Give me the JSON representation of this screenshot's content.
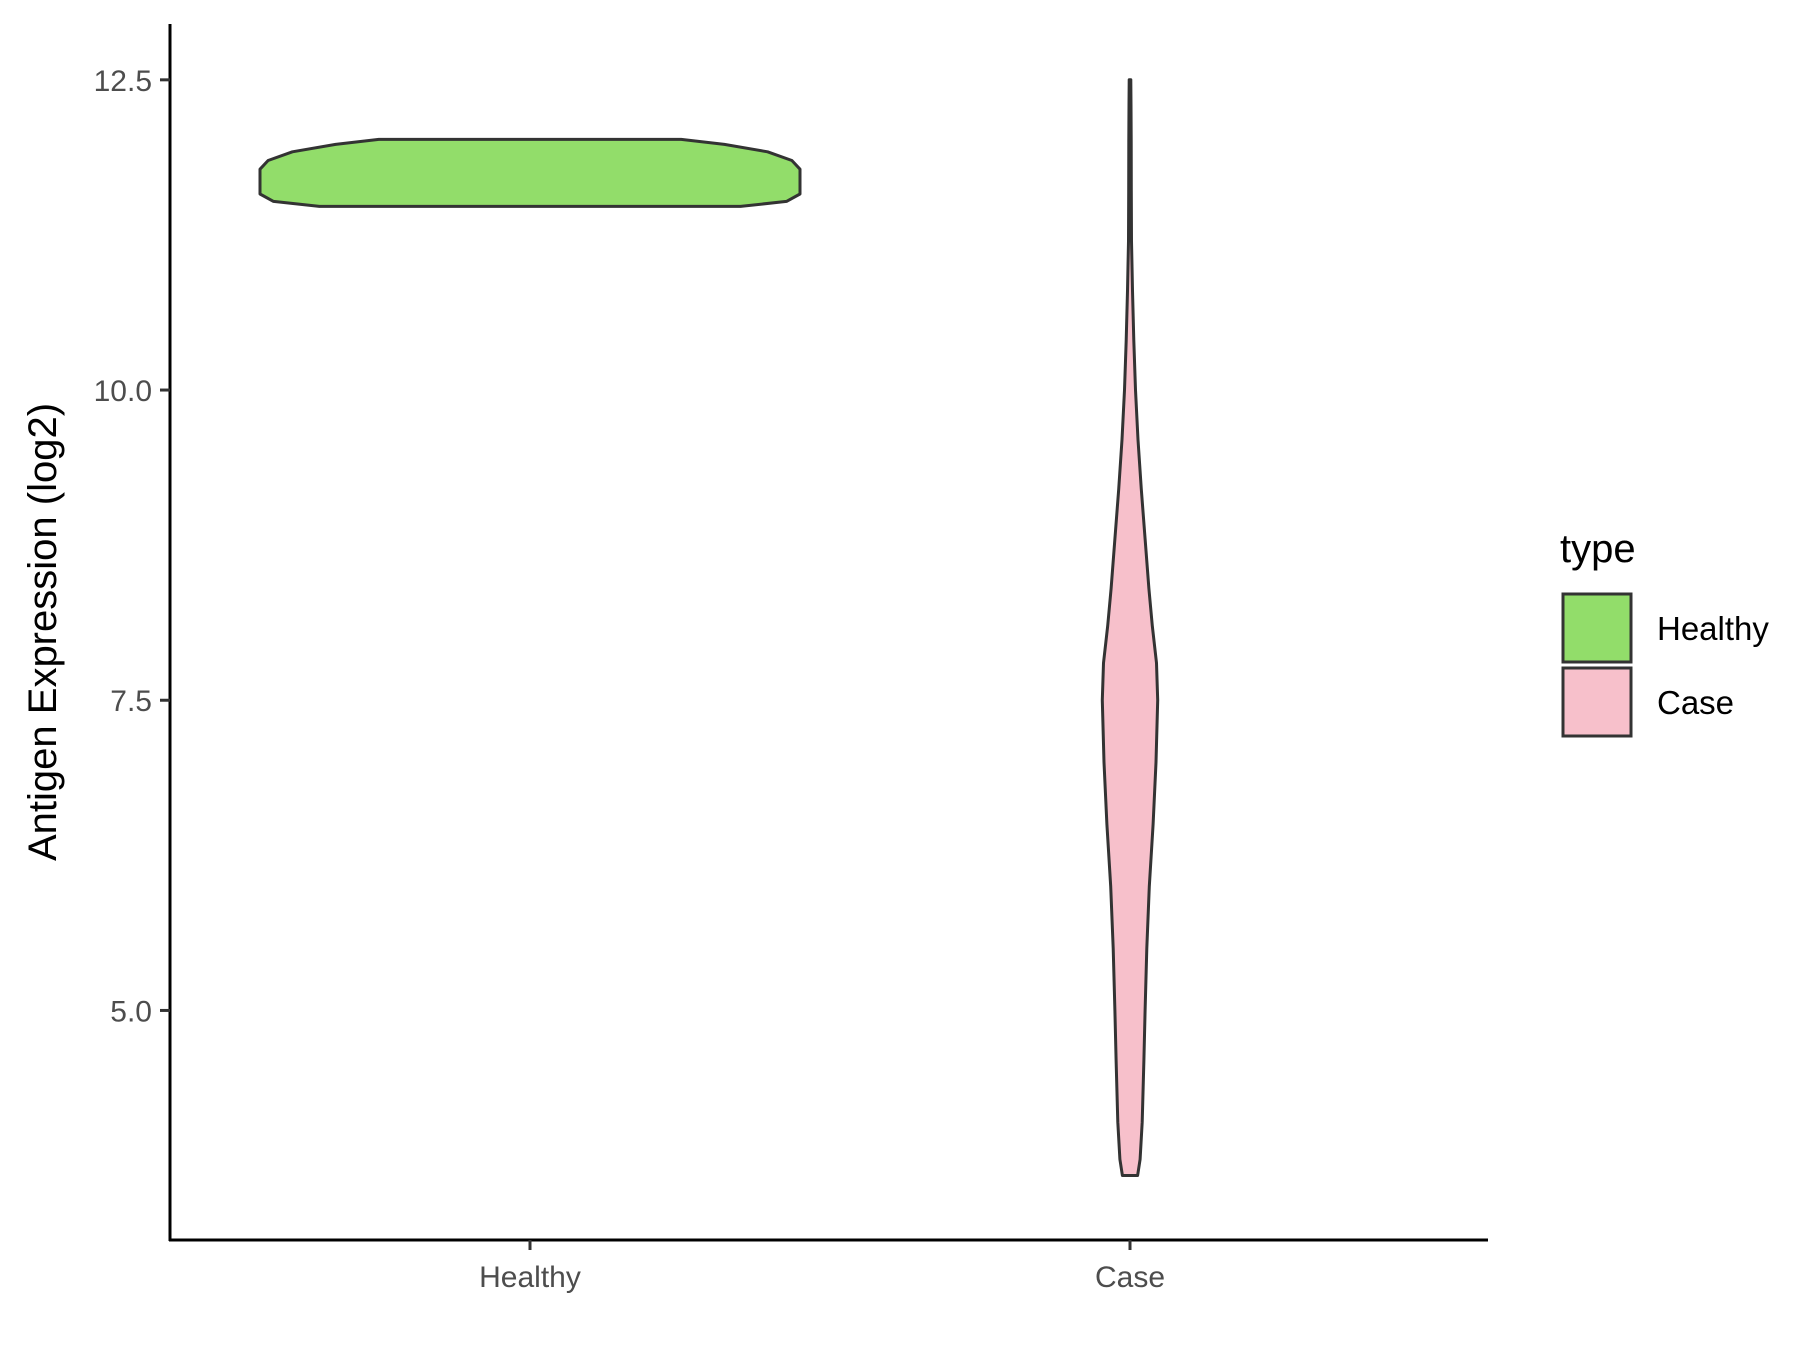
{
  "chart_data": {
    "type": "violin",
    "ylabel": "Antigen Expression (log2)",
    "xlabel": "",
    "categories": [
      "Healthy",
      "Case"
    ],
    "ylim": [
      3.15,
      12.95
    ],
    "yticks": [
      "5.0",
      "7.5",
      "10.0",
      "12.5"
    ],
    "ytick_values": [
      5.0,
      7.5,
      10.0,
      12.5
    ],
    "grid": false,
    "legend": {
      "title": "type",
      "position": "right",
      "entries": [
        {
          "label": "Healthy",
          "color": "#92DD6A"
        },
        {
          "label": "Case",
          "color": "#F7C0CB"
        }
      ]
    },
    "series": [
      {
        "name": "Healthy",
        "color": "#92DD6A",
        "range": [
          11.48,
          12.02
        ],
        "density_profile": [
          [
            11.48,
            0.78
          ],
          [
            11.52,
            0.95
          ],
          [
            11.58,
            1.0
          ],
          [
            11.65,
            1.0
          ],
          [
            11.72,
            1.0
          ],
          [
            11.78,
            1.0
          ],
          [
            11.85,
            0.97
          ],
          [
            11.92,
            0.88
          ],
          [
            11.98,
            0.72
          ],
          [
            12.02,
            0.56
          ]
        ]
      },
      {
        "name": "Case",
        "color": "#F7C0CB",
        "range": [
          3.67,
          12.5
        ],
        "density_profile": [
          [
            3.67,
            0.18
          ],
          [
            3.8,
            0.24
          ],
          [
            4.1,
            0.29
          ],
          [
            4.6,
            0.33
          ],
          [
            5.0,
            0.36
          ],
          [
            5.5,
            0.4
          ],
          [
            6.0,
            0.46
          ],
          [
            6.5,
            0.55
          ],
          [
            7.0,
            0.62
          ],
          [
            7.5,
            0.66
          ],
          [
            7.8,
            0.63
          ],
          [
            8.1,
            0.53
          ],
          [
            8.4,
            0.45
          ],
          [
            8.8,
            0.36
          ],
          [
            9.2,
            0.27
          ],
          [
            9.6,
            0.19
          ],
          [
            10.0,
            0.13
          ],
          [
            10.4,
            0.09
          ],
          [
            10.8,
            0.06
          ],
          [
            11.2,
            0.035
          ],
          [
            11.6,
            0.03
          ],
          [
            12.0,
            0.028
          ],
          [
            12.3,
            0.025
          ],
          [
            12.5,
            0.02
          ]
        ]
      }
    ]
  }
}
